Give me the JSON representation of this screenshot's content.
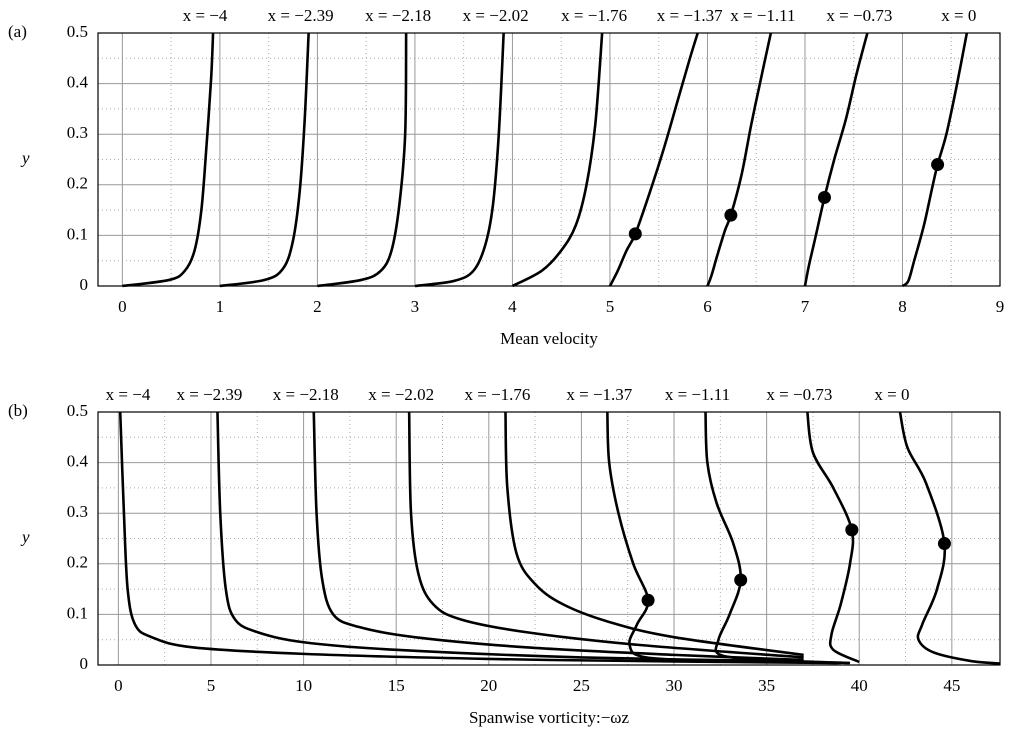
{
  "chart_data": [
    {
      "type": "line",
      "panel_label": "(a)",
      "xlabel": "Mean velocity",
      "ylabel": "y",
      "xlim": [
        -0.25,
        9
      ],
      "ylim": [
        0,
        0.5
      ],
      "xticks": [
        0,
        1,
        2,
        3,
        4,
        5,
        6,
        7,
        8,
        9
      ],
      "yticks": [
        0,
        0.1,
        0.2,
        0.3,
        0.4,
        0.5
      ],
      "xminorticks": [
        0.5,
        1.5,
        2.5,
        3.5,
        4.5,
        5.5,
        6.5,
        7.5,
        8.5
      ],
      "yminorticks": [
        0.05,
        0.15,
        0.25,
        0.35,
        0.45
      ],
      "grid": true,
      "series": [
        {
          "name": "x = −4",
          "color": "#000000",
          "x": [
            0,
            0.48,
            0.64,
            0.74,
            0.81,
            0.86,
            0.91,
            0.93
          ],
          "values": [
            0,
            0.012,
            0.03,
            0.07,
            0.15,
            0.27,
            0.41,
            0.5
          ]
        },
        {
          "name": "x = −2.39",
          "color": "#000000",
          "x": [
            1.0,
            1.46,
            1.65,
            1.75,
            1.82,
            1.87,
            1.91
          ],
          "values": [
            0,
            0.012,
            0.035,
            0.09,
            0.19,
            0.33,
            0.5
          ]
        },
        {
          "name": "x = −2.18",
          "color": "#000000",
          "x": [
            2.0,
            2.45,
            2.65,
            2.76,
            2.84,
            2.9,
            2.91
          ],
          "values": [
            0,
            0.012,
            0.03,
            0.07,
            0.16,
            0.3,
            0.5
          ]
        },
        {
          "name": "x = −2.02",
          "color": "#000000",
          "x": [
            3.0,
            3.4,
            3.6,
            3.72,
            3.8,
            3.86,
            3.91
          ],
          "values": [
            0,
            0.01,
            0.03,
            0.08,
            0.16,
            0.3,
            0.5
          ]
        },
        {
          "name": "x = −1.76",
          "color": "#000000",
          "x": [
            4.0,
            4.3,
            4.5,
            4.65,
            4.76,
            4.85,
            4.92
          ],
          "values": [
            0,
            0.03,
            0.07,
            0.12,
            0.2,
            0.32,
            0.5
          ]
        },
        {
          "name": "x = −1.37",
          "color": "#000000",
          "x": [
            5.0,
            5.08,
            5.17,
            5.26,
            5.4,
            5.55,
            5.7,
            5.82,
            5.9
          ],
          "values": [
            0,
            0.03,
            0.07,
            0.103,
            0.18,
            0.27,
            0.37,
            0.45,
            0.5
          ],
          "marker_x": 5.26,
          "marker_y": 0.103
        },
        {
          "name": "x = −1.11",
          "color": "#000000",
          "x": [
            6.0,
            6.04,
            6.1,
            6.18,
            6.24,
            6.35,
            6.45,
            6.56,
            6.65
          ],
          "values": [
            0,
            0.02,
            0.06,
            0.11,
            0.14,
            0.22,
            0.32,
            0.42,
            0.5
          ],
          "marker_x": 6.24,
          "marker_y": 0.14
        },
        {
          "name": "x = −0.73",
          "color": "#000000",
          "x": [
            7.0,
            7.04,
            7.1,
            7.2,
            7.3,
            7.42,
            7.53,
            7.64
          ],
          "values": [
            0,
            0.04,
            0.09,
            0.175,
            0.25,
            0.33,
            0.42,
            0.5
          ],
          "marker_x": 7.2,
          "marker_y": 0.175
        },
        {
          "name": "x = 0",
          "color": "#000000",
          "x": [
            8.0,
            8.06,
            8.12,
            8.22,
            8.3,
            8.36,
            8.45,
            8.55,
            8.66
          ],
          "values": [
            0,
            0.01,
            0.05,
            0.12,
            0.19,
            0.24,
            0.3,
            0.39,
            0.5
          ],
          "marker_x": 8.36,
          "marker_y": 0.24
        }
      ]
    },
    {
      "type": "line",
      "panel_label": "(b)",
      "xlabel": "Spanwise vorticity:−ωz",
      "ylabel": "y",
      "xlim": [
        -1.1,
        47.6
      ],
      "ylim": [
        0,
        0.5
      ],
      "xticks": [
        0,
        5,
        10,
        15,
        20,
        25,
        30,
        35,
        40,
        45
      ],
      "yticks": [
        0,
        0.1,
        0.2,
        0.3,
        0.4,
        0.5
      ],
      "xminorticks": [
        2.5,
        7.5,
        12.5,
        17.5,
        22.5,
        27.5,
        32.5,
        37.5,
        42.5
      ],
      "yminorticks": [
        0.05,
        0.15,
        0.25,
        0.35,
        0.45
      ],
      "grid": true,
      "series": [
        {
          "name": "x = −4",
          "color": "#000000",
          "x": [
            0.1,
            0.3,
            0.5,
            0.9,
            1.8,
            4,
            10,
            20,
            30,
            38.8
          ],
          "values": [
            0.5,
            0.3,
            0.15,
            0.08,
            0.055,
            0.035,
            0.022,
            0.012,
            0.007,
            0.004
          ]
        },
        {
          "name": "x = −2.39",
          "color": "#000000",
          "x": [
            5.35,
            5.5,
            5.8,
            6.3,
            7.5,
            10,
            15,
            25,
            37
          ],
          "values": [
            0.5,
            0.3,
            0.15,
            0.09,
            0.065,
            0.045,
            0.03,
            0.015,
            0.007
          ]
        },
        {
          "name": "x = −2.18",
          "color": "#000000",
          "x": [
            10.55,
            10.7,
            11,
            11.6,
            13,
            16,
            22,
            30,
            37
          ],
          "values": [
            0.5,
            0.3,
            0.17,
            0.1,
            0.075,
            0.055,
            0.035,
            0.02,
            0.01
          ]
        },
        {
          "name": "x = −2.02",
          "color": "#000000",
          "x": [
            15.7,
            15.8,
            16.2,
            17,
            18.5,
            22,
            28,
            37
          ],
          "values": [
            0.5,
            0.3,
            0.18,
            0.12,
            0.09,
            0.065,
            0.04,
            0.015
          ]
        },
        {
          "name": "x = −1.76",
          "color": "#000000",
          "x": [
            20.9,
            21,
            21.5,
            22.5,
            24,
            26.5,
            30,
            37
          ],
          "values": [
            0.5,
            0.35,
            0.22,
            0.16,
            0.12,
            0.085,
            0.055,
            0.02
          ]
        },
        {
          "name": "x = −1.37",
          "color": "#000000",
          "x": [
            26.4,
            26.5,
            27,
            27.8,
            28.6,
            28,
            27.6,
            28.5,
            33,
            39
          ],
          "values": [
            0.5,
            0.4,
            0.3,
            0.2,
            0.128,
            0.08,
            0.04,
            0.015,
            0.008,
            0.004
          ],
          "marker_x": 28.6,
          "marker_y": 0.128
        },
        {
          "name": "x = −1.11",
          "color": "#000000",
          "x": [
            31.7,
            31.8,
            32.3,
            33.2,
            33.6,
            33,
            32.4,
            32.5,
            35,
            39.5
          ],
          "values": [
            0.5,
            0.4,
            0.32,
            0.24,
            0.168,
            0.1,
            0.05,
            0.02,
            0.01,
            0.004
          ],
          "marker_x": 33.6,
          "marker_y": 0.168
        },
        {
          "name": "x = −0.73",
          "color": "#000000",
          "x": [
            37.2,
            37.5,
            38.6,
            39.6,
            39.5,
            39,
            38.5,
            38.6,
            40
          ],
          "values": [
            0.5,
            0.42,
            0.35,
            0.267,
            0.2,
            0.12,
            0.06,
            0.03,
            0.006
          ],
          "marker_x": 39.6,
          "marker_y": 0.267
        },
        {
          "name": "x = 0",
          "color": "#000000",
          "x": [
            42.2,
            42.6,
            43.6,
            44.6,
            44.2,
            43.4,
            43.2,
            44,
            46,
            47.6
          ],
          "values": [
            0.5,
            0.43,
            0.36,
            0.24,
            0.15,
            0.08,
            0.05,
            0.025,
            0.008,
            0.003
          ],
          "marker_x": 44.6,
          "marker_y": 0.24
        }
      ]
    }
  ]
}
